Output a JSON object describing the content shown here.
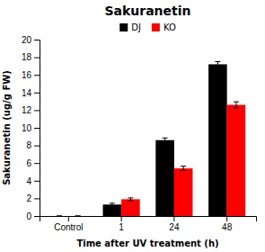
{
  "chart_data": {
    "type": "bar",
    "title": "Sakuranetin",
    "xlabel": "Time after UV treatment (h)",
    "ylabel": "Sakuranetin (ug/g FW)",
    "categories": [
      "Control",
      "1",
      "24",
      "48"
    ],
    "series": [
      {
        "name": "DJ",
        "color": "#000000",
        "values": [
          0.0,
          1.3,
          8.6,
          17.2
        ],
        "errors": [
          0.0,
          0.15,
          0.25,
          0.3
        ]
      },
      {
        "name": "KO",
        "color": "#ff0000",
        "values": [
          0.0,
          1.9,
          5.4,
          12.6
        ],
        "errors": [
          0.0,
          0.15,
          0.25,
          0.35
        ]
      }
    ],
    "ylim": [
      0,
      20
    ],
    "yticks": [
      0,
      2,
      4,
      6,
      8,
      10,
      12,
      14,
      16,
      18,
      20
    ],
    "legend": "top"
  }
}
